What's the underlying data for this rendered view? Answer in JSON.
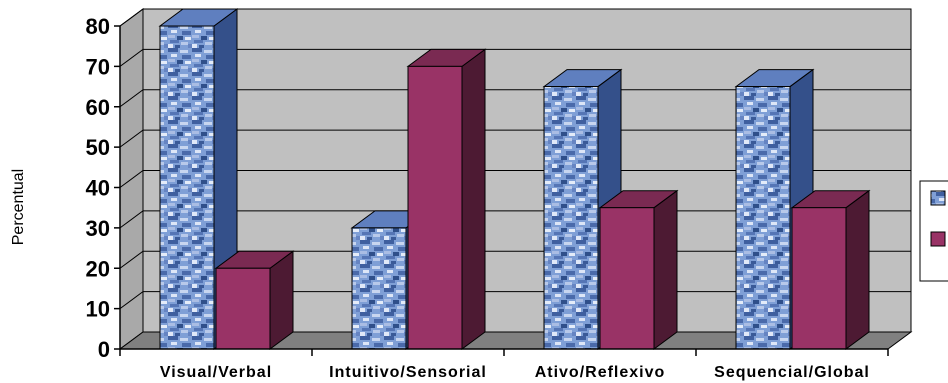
{
  "chart_data": {
    "type": "bar",
    "title": "",
    "xlabel": "",
    "ylabel": "Percentual",
    "ylim": [
      0,
      80
    ],
    "yticks": [
      0,
      10,
      20,
      30,
      40,
      50,
      60,
      70,
      80
    ],
    "categories": [
      "Visual/Verbal",
      "Intuitivo/Sensorial",
      "Ativo/Reflexivo",
      "Sequencial/Global"
    ],
    "series": [
      {
        "values": [
          80,
          30,
          65,
          65
        ],
        "color": "#6f8fc8",
        "texture": "blue-marble"
      },
      {
        "values": [
          20,
          70,
          35,
          35
        ],
        "color": "#993366"
      }
    ],
    "grid": true,
    "three_d": true,
    "legend": "right"
  }
}
